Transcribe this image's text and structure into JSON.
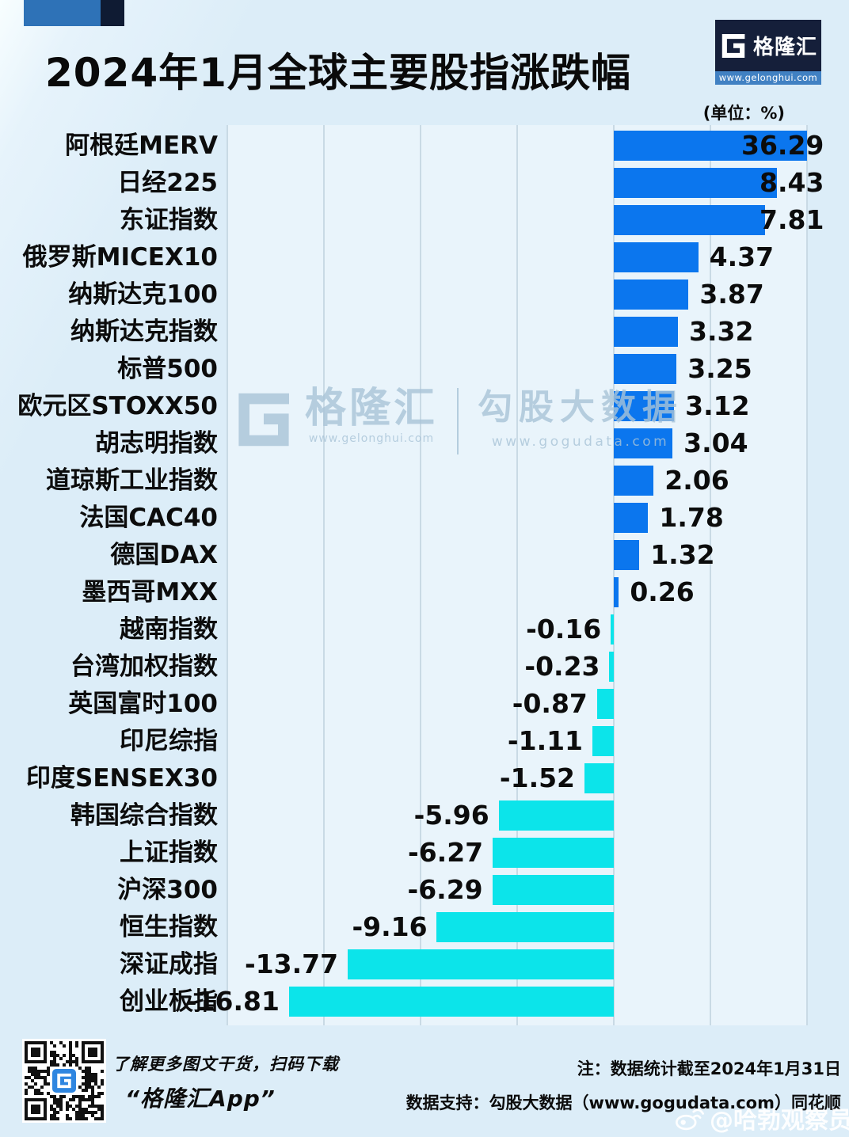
{
  "header": {
    "title": "2024年1月全球主要股指涨跌幅",
    "unit_label": "(单位：%)",
    "logo": {
      "brand": "格隆汇",
      "url": "www.gelonghui.com"
    }
  },
  "chart_data": {
    "type": "bar",
    "orientation": "horizontal",
    "title": "2024年1月全球主要股指涨跌幅",
    "unit": "%",
    "categories": [
      "阿根廷MERV",
      "日经225",
      "东证指数",
      "俄罗斯MICEX10",
      "纳斯达克100",
      "纳斯达克指数",
      "标普500",
      "欧元区STOXX50",
      "胡志明指数",
      "道琼斯工业指数",
      "法国CAC40",
      "德国DAX",
      "墨西哥MXX",
      "越南指数",
      "台湾加权指数",
      "英国富时100",
      "印尼综指",
      "印度SENSEX30",
      "韩国综合指数",
      "上证指数",
      "沪深300",
      "恒生指数",
      "深证成指",
      "创业板指"
    ],
    "values": [
      36.29,
      8.43,
      7.81,
      4.37,
      3.87,
      3.32,
      3.25,
      3.12,
      3.04,
      2.06,
      1.78,
      1.32,
      0.26,
      -0.16,
      -0.23,
      -0.87,
      -1.11,
      -1.52,
      -5.96,
      -6.27,
      -6.29,
      -9.16,
      -13.77,
      -16.81
    ],
    "xlim": [
      -20,
      10
    ],
    "gridline_step": 5,
    "grid": true,
    "legend": false,
    "bar_clip_max": 10,
    "positive_color": "#0b76ee",
    "negative_color": "#0ce4ea"
  },
  "watermark": {
    "brand": "格隆汇",
    "brand_url": "www.gelonghui.com",
    "partner": "勾股大数据",
    "partner_url": "www.gogudata.com"
  },
  "footer": {
    "qr_caption": "了解更多图文干货，扫码下载",
    "app_name": "“格隆汇App”",
    "note_line1": "注：数据统计截至2024年1月31日",
    "note_line2": "数据支持：勾股大数据（www.gogudata.com）同花顺",
    "weibo_handle": "@哈勃观察员"
  }
}
